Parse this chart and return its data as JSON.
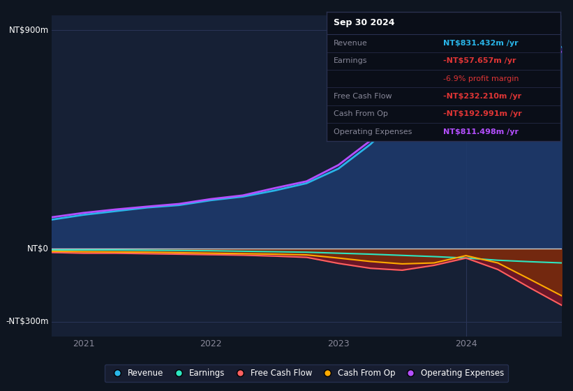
{
  "bg_color": "#0e1520",
  "plot_bg_color": "#0e1520",
  "chart_bg": "#162035",
  "x": [
    2020.75,
    2021.0,
    2021.25,
    2021.5,
    2021.75,
    2022.0,
    2022.25,
    2022.5,
    2022.75,
    2023.0,
    2023.25,
    2023.5,
    2023.75,
    2024.0,
    2024.25,
    2024.5,
    2024.75
  ],
  "revenue": [
    120,
    140,
    155,
    170,
    180,
    200,
    215,
    240,
    270,
    330,
    430,
    555,
    660,
    730,
    790,
    812,
    831
  ],
  "operating_expenses": [
    130,
    148,
    162,
    174,
    185,
    205,
    220,
    250,
    278,
    345,
    445,
    568,
    672,
    735,
    772,
    795,
    811
  ],
  "earnings": [
    -5,
    -5,
    -5,
    -6,
    -7,
    -8,
    -10,
    -12,
    -14,
    -18,
    -22,
    -27,
    -32,
    -38,
    -47,
    -53,
    -58
  ],
  "free_cash_flow": [
    -15,
    -18,
    -18,
    -20,
    -22,
    -24,
    -26,
    -30,
    -35,
    -60,
    -80,
    -88,
    -68,
    -38,
    -85,
    -160,
    -232
  ],
  "cash_from_op": [
    -10,
    -12,
    -13,
    -14,
    -16,
    -18,
    -20,
    -22,
    -25,
    -38,
    -52,
    -62,
    -58,
    -28,
    -58,
    -125,
    -193
  ],
  "ylim": [
    -360,
    960
  ],
  "yticks": [
    900,
    0,
    -300
  ],
  "ytick_labels": [
    "NT$900m",
    "NT$0",
    "-NT$300m"
  ],
  "xticks": [
    2021.0,
    2022.0,
    2023.0,
    2024.0
  ],
  "xtick_labels": [
    "2021",
    "2022",
    "2023",
    "2024"
  ],
  "revenue_line_color": "#29b5e8",
  "opex_line_color": "#b44fff",
  "earnings_line_color": "#2de6c1",
  "fcf_line_color": "#ff6060",
  "cashop_line_color": "#ffaa00",
  "revenue_fill_color": "#1e3a6e",
  "opex_fill_color": "#2a1a5e",
  "fcf_fill_color": "#7a1525",
  "cashop_fill_color": "#7a3500",
  "info_bg": "#0a0e18",
  "info_border": "#2a3050",
  "table_rows": [
    {
      "label": "Revenue",
      "value": "NT$831.432m /yr",
      "lc": "#888899",
      "vc": "#29b5e8",
      "bold_val": true
    },
    {
      "label": "Earnings",
      "value": "-NT$57.657m /yr",
      "lc": "#888899",
      "vc": "#e03535",
      "bold_val": true
    },
    {
      "label": "",
      "value": "-6.9% profit margin",
      "lc": "#888899",
      "vc": "#e03535",
      "bold_val": false
    },
    {
      "label": "Free Cash Flow",
      "value": "-NT$232.210m /yr",
      "lc": "#888899",
      "vc": "#e03535",
      "bold_val": true
    },
    {
      "label": "Cash From Op",
      "value": "-NT$192.991m /yr",
      "lc": "#888899",
      "vc": "#e03535",
      "bold_val": true
    },
    {
      "label": "Operating Expenses",
      "value": "NT$811.498m /yr",
      "lc": "#888899",
      "vc": "#b44fff",
      "bold_val": true
    }
  ],
  "legend": [
    {
      "label": "Revenue",
      "color": "#29b5e8"
    },
    {
      "label": "Earnings",
      "color": "#2de6c1"
    },
    {
      "label": "Free Cash Flow",
      "color": "#ff6060"
    },
    {
      "label": "Cash From Op",
      "color": "#ffaa00"
    },
    {
      "label": "Operating Expenses",
      "color": "#b44fff"
    }
  ]
}
